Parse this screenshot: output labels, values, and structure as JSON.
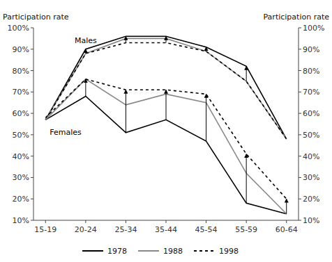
{
  "chart_data": {
    "type": "line",
    "categories": [
      "15-19",
      "20-24",
      "25-34",
      "35-44",
      "45-54",
      "55-59",
      "60-64"
    ],
    "series": [
      {
        "name": "1978",
        "color": "#000000",
        "line_style": "solid",
        "values": [
          57,
          90,
          96,
          96,
          91,
          82,
          48
        ]
      },
      {
        "name": "1988",
        "color": "#888888",
        "line_style": "solid",
        "values": [
          57,
          88,
          95,
          95,
          89,
          75,
          48
        ]
      },
      {
        "name": "1998",
        "color": "#000000",
        "line_style": "dashed",
        "values": [
          57,
          88,
          93,
          93,
          89,
          75,
          48
        ]
      },
      {
        "name": "1978",
        "color": "#000000",
        "line_style": "solid",
        "values": [
          57,
          68,
          51,
          57,
          47,
          18,
          13
        ]
      },
      {
        "name": "1988",
        "color": "#888888",
        "line_style": "solid",
        "values": [
          57,
          76,
          64,
          69,
          65,
          32,
          13
        ]
      },
      {
        "name": "1998",
        "color": "#000000",
        "line_style": "dashed",
        "values": [
          58,
          76,
          71,
          71,
          69,
          41,
          20
        ]
      }
    ],
    "annotations": [
      "Males",
      "Females"
    ],
    "arrows": [
      {
        "x": "20-24",
        "from": 88,
        "to": 90
      },
      {
        "x": "25-34",
        "from": 93,
        "to": 96
      },
      {
        "x": "35-44",
        "from": 93,
        "to": 96
      },
      {
        "x": "45-54",
        "from": 89,
        "to": 91
      },
      {
        "x": "55-59",
        "from": 75,
        "to": 82
      },
      {
        "x": "20-24",
        "from": 68,
        "to": 76
      },
      {
        "x": "25-34",
        "from": 51,
        "to": 71
      },
      {
        "x": "35-44",
        "from": 57,
        "to": 71
      },
      {
        "x": "45-54",
        "from": 47,
        "to": 69
      },
      {
        "x": "55-59",
        "from": 18,
        "to": 41
      },
      {
        "x": "60-64",
        "from": 13,
        "to": 20
      }
    ],
    "ylabel": "Participation rate",
    "y2label": "Participation rate",
    "ylim": [
      10,
      100
    ],
    "yticks": [
      {
        "value": 10,
        "label": "10%"
      },
      {
        "value": 20,
        "label": "20%"
      },
      {
        "value": 30,
        "label": "30%"
      },
      {
        "value": 40,
        "label": "40%"
      },
      {
        "value": 50,
        "label": "50%"
      },
      {
        "value": 60,
        "label": "60%"
      },
      {
        "value": 70,
        "label": "70%"
      },
      {
        "value": 80,
        "label": "80%"
      },
      {
        "value": 90,
        "label": "90%"
      },
      {
        "value": 100,
        "label": "100%"
      }
    ],
    "y2lim": [
      10,
      100
    ],
    "y2ticks": [
      {
        "value": 10,
        "label": "10%"
      },
      {
        "value": 20,
        "label": "20%"
      },
      {
        "value": 30,
        "label": "30%"
      },
      {
        "value": 40,
        "label": "40%"
      },
      {
        "value": 50,
        "label": "50%"
      },
      {
        "value": 60,
        "label": "60%"
      },
      {
        "value": 70,
        "label": "70%"
      },
      {
        "value": 80,
        "label": "80%"
      },
      {
        "value": 90,
        "label": "90%"
      },
      {
        "value": 100,
        "label": "100%"
      }
    ],
    "grid": false,
    "legend": "bottom"
  }
}
